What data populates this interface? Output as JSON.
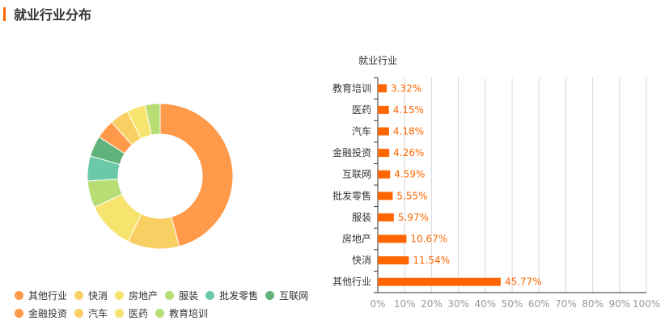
{
  "header": {
    "title": "就业行业分布",
    "accent_color": "#ff6600"
  },
  "chart_data": [
    {
      "type": "pie",
      "variant": "donut",
      "legend_position": "bottom-left",
      "series": [
        {
          "name": "其他行业",
          "value": 45.77,
          "color": "#ff9a4a"
        },
        {
          "name": "快消",
          "value": 11.54,
          "color": "#f7cf62"
        },
        {
          "name": "房地产",
          "value": 10.67,
          "color": "#f7e46e"
        },
        {
          "name": "服装",
          "value": 5.97,
          "color": "#b7dd74"
        },
        {
          "name": "批发零售",
          "value": 5.55,
          "color": "#6cc9a7"
        },
        {
          "name": "互联网",
          "value": 4.59,
          "color": "#62b27b"
        },
        {
          "name": "金融投资",
          "value": 4.26,
          "color": "#ff9a4a"
        },
        {
          "name": "汽车",
          "value": 4.18,
          "color": "#f7cf62"
        },
        {
          "name": "医药",
          "value": 4.15,
          "color": "#f7e46e"
        },
        {
          "name": "教育培训",
          "value": 3.32,
          "color": "#b7dd74"
        }
      ]
    },
    {
      "type": "bar",
      "orientation": "horizontal",
      "title": "就业行业",
      "bar_color": "#ff6600",
      "label_color": "#ff6600",
      "grid": true,
      "xlim": [
        0,
        100
      ],
      "x_ticks": [
        "0%",
        "10%",
        "20%",
        "30%",
        "40%",
        "50%",
        "60%",
        "70%",
        "80%",
        "90%",
        "100%"
      ],
      "categories": [
        "教育培训",
        "医药",
        "汽车",
        "金融投资",
        "互联网",
        "批发零售",
        "服装",
        "房地产",
        "快消",
        "其他行业"
      ],
      "values": [
        3.32,
        4.15,
        4.18,
        4.26,
        4.59,
        5.55,
        5.97,
        10.67,
        11.54,
        45.77
      ],
      "value_labels": [
        "3.32%",
        "4.15%",
        "4.18%",
        "4.26%",
        "4.59%",
        "5.55%",
        "5.97%",
        "10.67%",
        "11.54%",
        "45.77%"
      ]
    }
  ]
}
